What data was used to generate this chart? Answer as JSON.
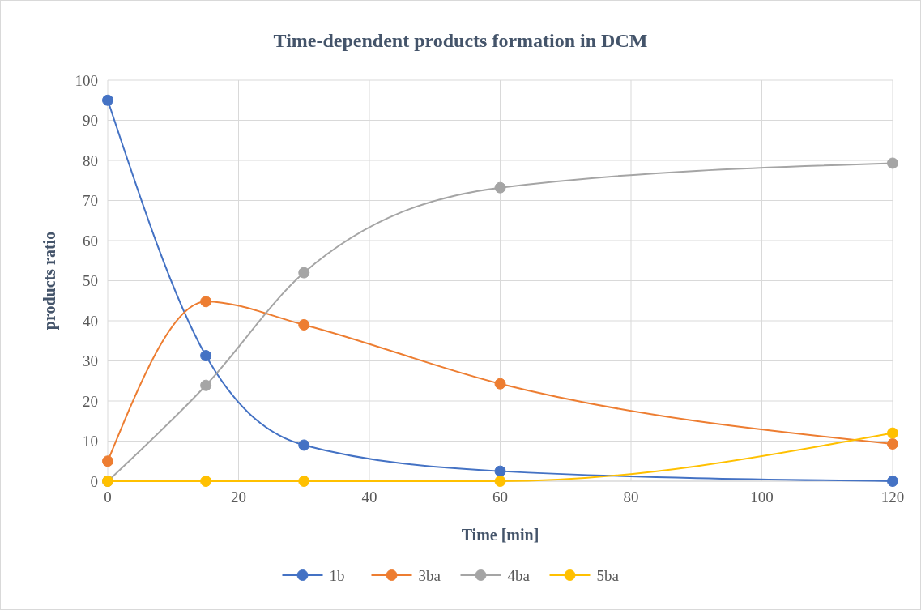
{
  "chart_data": {
    "type": "line",
    "title": "Time-dependent products formation in DCM",
    "xlabel": "Time [min]",
    "ylabel": "products ratio",
    "x": [
      0,
      15,
      30,
      60,
      120
    ],
    "series": [
      {
        "name": "1b",
        "color": "#4472c4",
        "values": [
          95,
          31.3,
          9,
          2.5,
          0
        ]
      },
      {
        "name": "3ba",
        "color": "#ed7d31",
        "values": [
          5,
          44.8,
          39,
          24.3,
          9.3
        ]
      },
      {
        "name": "4ba",
        "color": "#a5a5a5",
        "values": [
          0,
          23.9,
          52,
          73.2,
          79.3
        ]
      },
      {
        "name": "5ba",
        "color": "#ffc000",
        "values": [
          0,
          0,
          0,
          0,
          12
        ]
      }
    ],
    "xlim": [
      0,
      120
    ],
    "xticks": [
      0,
      20,
      40,
      60,
      80,
      100,
      120
    ],
    "ylim": [
      0,
      100
    ],
    "yticks": [
      0,
      10,
      20,
      30,
      40,
      50,
      60,
      70,
      80,
      90,
      100
    ],
    "grid": true,
    "legend": "bottom",
    "marker": "circle",
    "line_style": "solid"
  }
}
